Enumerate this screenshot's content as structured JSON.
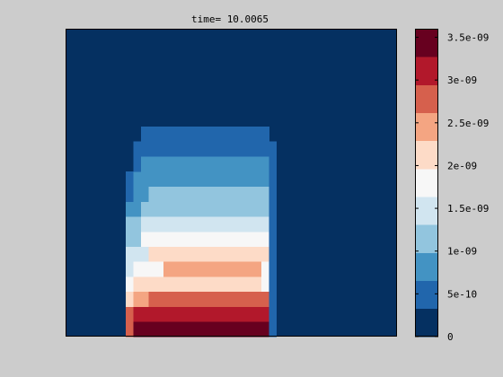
{
  "chart_data": {
    "type": "heatmap",
    "title": "time= 10.0065",
    "xlabel": "",
    "ylabel": "",
    "colormap": "RdBu_r (discrete, 11 bins)",
    "colorbar": {
      "range": [
        0,
        3.6e-09
      ],
      "tick_values": [
        0,
        5e-10,
        1e-09,
        1.5e-09,
        2e-09,
        2.5e-09,
        3e-09,
        3.5e-09
      ],
      "tick_labels": [
        "0",
        "5e-10",
        "1e-09",
        "1.5e-09",
        "2e-09",
        "2.5e-09",
        "3e-09",
        "3.5e-09"
      ],
      "bin_colors": [
        "#053061",
        "#2166ac",
        "#4393c3",
        "#92c5de",
        "#d1e5f0",
        "#f7f7f7",
        "#fddbc7",
        "#f4a582",
        "#d6604d",
        "#b2182b",
        "#67001f"
      ]
    },
    "grid": {
      "cols": 44,
      "rows": 41
    },
    "field_description": "Level bin index per row (row 0 = bottom) within column ranges; outside the ranges the level is 0",
    "rows": [
      {
        "r": [
          0,
          1
        ],
        "segments": [
          {
            "c": [
              8,
              8
            ],
            "level": 8
          },
          {
            "c": [
              9,
              26
            ],
            "level": 10
          },
          {
            "c": [
              27,
              27
            ],
            "level": 1
          }
        ]
      },
      {
        "r": [
          2,
          3
        ],
        "segments": [
          {
            "c": [
              8,
              8
            ],
            "level": 8
          },
          {
            "c": [
              9,
              26
            ],
            "level": 9
          },
          {
            "c": [
              27,
              27
            ],
            "level": 1
          }
        ]
      },
      {
        "r": [
          4,
          5
        ],
        "segments": [
          {
            "c": [
              8,
              8
            ],
            "level": 6
          },
          {
            "c": [
              9,
              10
            ],
            "level": 7
          },
          {
            "c": [
              11,
              26
            ],
            "level": 8
          },
          {
            "c": [
              27,
              27
            ],
            "level": 1
          }
        ]
      },
      {
        "r": [
          6,
          7
        ],
        "segments": [
          {
            "c": [
              8,
              8
            ],
            "level": 5
          },
          {
            "c": [
              9,
              25
            ],
            "level": 6
          },
          {
            "c": [
              26,
              26
            ],
            "level": 5
          },
          {
            "c": [
              27,
              27
            ],
            "level": 1
          }
        ]
      },
      {
        "r": [
          8,
          9
        ],
        "segments": [
          {
            "c": [
              8,
              8
            ],
            "level": 4
          },
          {
            "c": [
              9,
              12
            ],
            "level": 5
          },
          {
            "c": [
              13,
              25
            ],
            "level": 7
          },
          {
            "c": [
              26,
              26
            ],
            "level": 5
          },
          {
            "c": [
              27,
              27
            ],
            "level": 1
          }
        ]
      },
      {
        "r": [
          10,
          11
        ],
        "segments": [
          {
            "c": [
              8,
              8
            ],
            "level": 4
          },
          {
            "c": [
              9,
              10
            ],
            "level": 4
          },
          {
            "c": [
              11,
              26
            ],
            "level": 6
          },
          {
            "c": [
              27,
              27
            ],
            "level": 1
          }
        ]
      },
      {
        "r": [
          12,
          13
        ],
        "segments": [
          {
            "c": [
              8,
              9
            ],
            "level": 3
          },
          {
            "c": [
              10,
              26
            ],
            "level": 5
          },
          {
            "c": [
              27,
              27
            ],
            "level": 1
          }
        ]
      },
      {
        "r": [
          14,
          15
        ],
        "segments": [
          {
            "c": [
              8,
              9
            ],
            "level": 3
          },
          {
            "c": [
              10,
              26
            ],
            "level": 4
          },
          {
            "c": [
              27,
              27
            ],
            "level": 1
          }
        ]
      },
      {
        "r": [
          16,
          17
        ],
        "segments": [
          {
            "c": [
              8,
              9
            ],
            "level": 2
          },
          {
            "c": [
              10,
              26
            ],
            "level": 3
          },
          {
            "c": [
              27,
              27
            ],
            "level": 1
          }
        ]
      },
      {
        "r": [
          18,
          19
        ],
        "segments": [
          {
            "c": [
              8,
              8
            ],
            "level": 1
          },
          {
            "c": [
              9,
              10
            ],
            "level": 2
          },
          {
            "c": [
              11,
              26
            ],
            "level": 3
          },
          {
            "c": [
              27,
              27
            ],
            "level": 1
          }
        ]
      },
      {
        "r": [
          20,
          21
        ],
        "segments": [
          {
            "c": [
              8,
              8
            ],
            "level": 1
          },
          {
            "c": [
              9,
              26
            ],
            "level": 2
          },
          {
            "c": [
              27,
              27
            ],
            "level": 1
          }
        ]
      },
      {
        "r": [
          22,
          23
        ],
        "segments": [
          {
            "c": [
              9,
              9
            ],
            "level": 1
          },
          {
            "c": [
              10,
              26
            ],
            "level": 2
          },
          {
            "c": [
              27,
              27
            ],
            "level": 1
          }
        ]
      },
      {
        "r": [
          24,
          25
        ],
        "segments": [
          {
            "c": [
              9,
              27
            ],
            "level": 1
          }
        ]
      },
      {
        "r": [
          26,
          27
        ],
        "segments": [
          {
            "c": [
              10,
              26
            ],
            "level": 1
          }
        ]
      }
    ]
  }
}
